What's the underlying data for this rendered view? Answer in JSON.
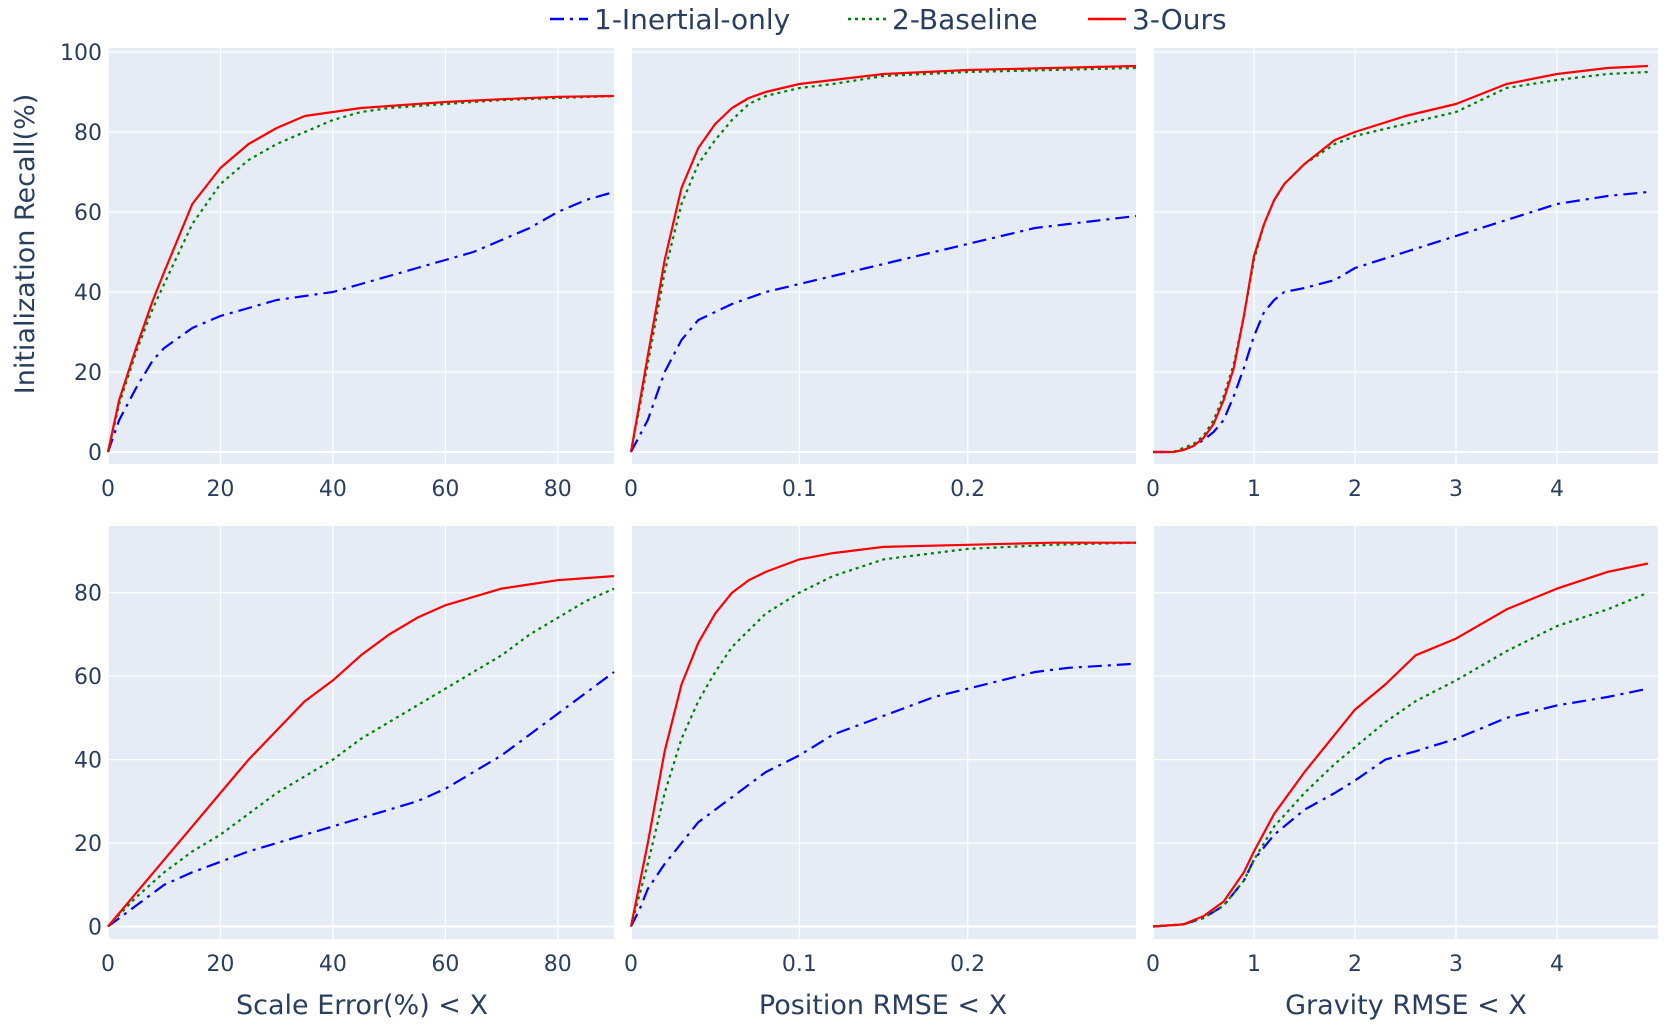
{
  "figure": {
    "legend": [
      {
        "key": "inertial",
        "label": "1-Inertial-only",
        "color": "#0000ff",
        "dash": "dashdot"
      },
      {
        "key": "baseline",
        "label": "2-Baseline",
        "color": "#008000",
        "dash": "dot"
      },
      {
        "key": "ours",
        "label": "3-Ours",
        "color": "#ff0000",
        "dash": "solid"
      }
    ],
    "ylabel": "Initialization Recall(%)",
    "xlabels": [
      "Scale Error(%) < X",
      "Position RMSE < X",
      "Gravity RMSE < X"
    ],
    "plot_bg": "#e5ecf6",
    "grid_color": "#ffffff"
  },
  "chart_data": [
    {
      "id": "top-scale",
      "type": "line",
      "row": 0,
      "col": 0,
      "xlim": [
        0,
        90
      ],
      "ylim": [
        -3,
        101
      ],
      "xticks": [
        0,
        20,
        40,
        60,
        80
      ],
      "xtick_labels": [
        "0",
        "20",
        "40",
        "60",
        "80"
      ],
      "yticks": [
        0,
        20,
        40,
        60,
        80,
        100
      ],
      "ytick_labels": [
        "0",
        "20",
        "40",
        "60",
        "80",
        "100"
      ],
      "series": [
        {
          "name": "1-Inertial-only",
          "x": [
            0,
            2,
            5,
            8,
            10,
            15,
            20,
            25,
            30,
            35,
            40,
            45,
            50,
            55,
            60,
            65,
            70,
            75,
            80,
            85,
            90
          ],
          "y": [
            0,
            8,
            16,
            23,
            26,
            31,
            34,
            36,
            38,
            39,
            40,
            42,
            44,
            46,
            48,
            50,
            53,
            56,
            60,
            63,
            65
          ]
        },
        {
          "name": "2-Baseline",
          "x": [
            0,
            2,
            5,
            8,
            10,
            15,
            20,
            25,
            30,
            35,
            40,
            45,
            50,
            55,
            60,
            70,
            80,
            90
          ],
          "y": [
            0,
            12,
            25,
            36,
            42,
            57,
            67,
            73,
            77,
            80,
            83,
            85,
            86,
            86.5,
            87,
            88,
            88.5,
            89
          ]
        },
        {
          "name": "3-Ours",
          "x": [
            0,
            2,
            5,
            8,
            10,
            15,
            20,
            25,
            30,
            35,
            40,
            45,
            50,
            55,
            60,
            70,
            80,
            90
          ],
          "y": [
            0,
            13,
            26,
            38,
            45,
            62,
            71,
            77,
            81,
            84,
            85,
            86,
            86.5,
            87,
            87.5,
            88.2,
            88.8,
            89
          ]
        }
      ]
    },
    {
      "id": "top-position",
      "type": "line",
      "row": 0,
      "col": 1,
      "xlim": [
        0,
        0.3
      ],
      "ylim": [
        -3,
        101
      ],
      "xticks": [
        0,
        0.1,
        0.2
      ],
      "xtick_labels": [
        "0",
        "0.1",
        "0.2"
      ],
      "yticks": [
        0,
        20,
        40,
        60,
        80,
        100
      ],
      "ytick_labels": [],
      "series": [
        {
          "name": "1-Inertial-only",
          "x": [
            0,
            0.01,
            0.02,
            0.03,
            0.04,
            0.05,
            0.06,
            0.08,
            0.1,
            0.12,
            0.14,
            0.16,
            0.18,
            0.2,
            0.22,
            0.24,
            0.26,
            0.28,
            0.3
          ],
          "y": [
            0,
            8,
            20,
            28,
            33,
            35,
            37,
            40,
            42,
            44,
            46,
            48,
            50,
            52,
            54,
            56,
            57,
            58,
            59
          ]
        },
        {
          "name": "2-Baseline",
          "x": [
            0,
            0.01,
            0.02,
            0.03,
            0.04,
            0.05,
            0.06,
            0.07,
            0.08,
            0.1,
            0.12,
            0.15,
            0.2,
            0.25,
            0.3
          ],
          "y": [
            0,
            22,
            45,
            62,
            72,
            78,
            83,
            87,
            89,
            91,
            92,
            94,
            95,
            95.5,
            96
          ]
        },
        {
          "name": "3-Ours",
          "x": [
            0,
            0.01,
            0.02,
            0.03,
            0.04,
            0.05,
            0.06,
            0.07,
            0.08,
            0.1,
            0.12,
            0.15,
            0.2,
            0.25,
            0.3
          ],
          "y": [
            0,
            24,
            48,
            66,
            76,
            82,
            86,
            88.5,
            90,
            92,
            93,
            94.5,
            95.5,
            96,
            96.5
          ]
        }
      ]
    },
    {
      "id": "top-gravity",
      "type": "line",
      "row": 0,
      "col": 2,
      "xlim": [
        0,
        5
      ],
      "ylim": [
        -3,
        101
      ],
      "xticks": [
        0,
        1,
        2,
        3,
        4
      ],
      "xtick_labels": [
        "0",
        "1",
        "2",
        "3",
        "4"
      ],
      "yticks": [
        0,
        20,
        40,
        60,
        80,
        100
      ],
      "ytick_labels": [],
      "series": [
        {
          "name": "1-Inertial-only",
          "x": [
            0,
            0.2,
            0.3,
            0.4,
            0.5,
            0.6,
            0.7,
            0.8,
            0.9,
            1.0,
            1.1,
            1.2,
            1.3,
            1.5,
            1.8,
            2.0,
            2.5,
            3.0,
            3.5,
            4.0,
            4.5,
            4.9
          ],
          "y": [
            0,
            0,
            0.5,
            1.5,
            3,
            5,
            8,
            14,
            21,
            29,
            35,
            38,
            40,
            41,
            43,
            46,
            50,
            54,
            58,
            62,
            64,
            65
          ]
        },
        {
          "name": "2-Baseline",
          "x": [
            0,
            0.2,
            0.3,
            0.4,
            0.5,
            0.6,
            0.7,
            0.8,
            0.9,
            1.0,
            1.1,
            1.2,
            1.3,
            1.5,
            1.8,
            2.0,
            2.5,
            3.0,
            3.5,
            4.0,
            4.5,
            4.9
          ],
          "y": [
            0,
            0,
            1,
            2,
            4,
            8,
            14,
            22,
            34,
            48,
            57,
            63,
            67,
            72,
            77,
            79,
            82,
            85,
            91,
            93,
            94.5,
            95
          ]
        },
        {
          "name": "3-Ours",
          "x": [
            0,
            0.2,
            0.3,
            0.4,
            0.5,
            0.6,
            0.7,
            0.8,
            0.9,
            1.0,
            1.1,
            1.2,
            1.3,
            1.5,
            1.8,
            2.0,
            2.5,
            3.0,
            3.5,
            4.0,
            4.5,
            4.9
          ],
          "y": [
            0,
            0,
            0.5,
            1.5,
            3.5,
            7,
            13,
            21,
            34,
            49,
            57,
            63,
            67,
            72,
            78,
            80,
            84,
            87,
            92,
            94.5,
            96,
            96.5
          ]
        }
      ]
    },
    {
      "id": "bottom-scale",
      "type": "line",
      "row": 1,
      "col": 0,
      "xlim": [
        0,
        90
      ],
      "ylim": [
        -3,
        96
      ],
      "xticks": [
        0,
        20,
        40,
        60,
        80
      ],
      "xtick_labels": [
        "0",
        "20",
        "40",
        "60",
        "80"
      ],
      "yticks": [
        0,
        20,
        40,
        60,
        80
      ],
      "ytick_labels": [
        "0",
        "20",
        "40",
        "60",
        "80"
      ],
      "series": [
        {
          "name": "1-Inertial-only",
          "x": [
            0,
            5,
            10,
            15,
            20,
            25,
            30,
            35,
            40,
            45,
            50,
            55,
            60,
            65,
            70,
            75,
            80,
            85,
            90
          ],
          "y": [
            0,
            5,
            10,
            13,
            15.5,
            18,
            20,
            22,
            24,
            26,
            28,
            30,
            33,
            37,
            41,
            46,
            51,
            56,
            61
          ]
        },
        {
          "name": "2-Baseline",
          "x": [
            0,
            5,
            10,
            15,
            20,
            25,
            30,
            35,
            40,
            45,
            50,
            55,
            60,
            65,
            70,
            75,
            80,
            85,
            90
          ],
          "y": [
            0,
            7,
            13,
            18,
            22,
            27,
            32,
            36,
            40,
            45,
            49,
            53,
            57,
            61,
            65,
            70,
            74,
            78,
            81
          ]
        },
        {
          "name": "3-Ours",
          "x": [
            0,
            5,
            10,
            15,
            20,
            25,
            30,
            35,
            40,
            45,
            50,
            55,
            60,
            65,
            70,
            75,
            80,
            85,
            90
          ],
          "y": [
            0,
            8,
            16,
            24,
            32,
            40,
            47,
            54,
            59,
            65,
            70,
            74,
            77,
            79,
            81,
            82,
            83,
            83.5,
            84
          ]
        }
      ]
    },
    {
      "id": "bottom-position",
      "type": "line",
      "row": 1,
      "col": 1,
      "xlim": [
        0,
        0.3
      ],
      "ylim": [
        -3,
        96
      ],
      "xticks": [
        0,
        0.1,
        0.2
      ],
      "xtick_labels": [
        "0",
        "0.1",
        "0.2"
      ],
      "yticks": [
        0,
        20,
        40,
        60,
        80
      ],
      "ytick_labels": [],
      "series": [
        {
          "name": "1-Inertial-only",
          "x": [
            0,
            0.005,
            0.01,
            0.02,
            0.03,
            0.04,
            0.05,
            0.06,
            0.08,
            0.1,
            0.12,
            0.14,
            0.16,
            0.18,
            0.2,
            0.22,
            0.24,
            0.26,
            0.28,
            0.3
          ],
          "y": [
            0,
            4,
            9,
            15,
            20,
            25,
            28,
            31,
            37,
            41,
            46,
            49,
            52,
            55,
            57,
            59,
            61,
            62,
            62.5,
            63
          ]
        },
        {
          "name": "2-Baseline",
          "x": [
            0,
            0.01,
            0.02,
            0.03,
            0.04,
            0.05,
            0.06,
            0.07,
            0.08,
            0.1,
            0.12,
            0.15,
            0.2,
            0.25,
            0.3
          ],
          "y": [
            0,
            15,
            32,
            45,
            54,
            61,
            67,
            71,
            75,
            80,
            84,
            88,
            90.5,
            91.5,
            92
          ]
        },
        {
          "name": "3-Ours",
          "x": [
            0,
            0.01,
            0.02,
            0.03,
            0.04,
            0.05,
            0.06,
            0.07,
            0.08,
            0.1,
            0.12,
            0.15,
            0.2,
            0.25,
            0.3
          ],
          "y": [
            0,
            20,
            42,
            58,
            68,
            75,
            80,
            83,
            85,
            88,
            89.5,
            91,
            91.5,
            92,
            92
          ]
        }
      ]
    },
    {
      "id": "bottom-gravity",
      "type": "line",
      "row": 1,
      "col": 2,
      "xlim": [
        0,
        5
      ],
      "ylim": [
        -3,
        96
      ],
      "xticks": [
        0,
        1,
        2,
        3,
        4
      ],
      "xtick_labels": [
        "0",
        "1",
        "2",
        "3",
        "4"
      ],
      "yticks": [
        0,
        20,
        40,
        60,
        80
      ],
      "ytick_labels": [],
      "series": [
        {
          "name": "1-Inertial-only",
          "x": [
            0,
            0.3,
            0.5,
            0.7,
            0.9,
            1.0,
            1.2,
            1.5,
            1.8,
            2.0,
            2.3,
            2.6,
            3.0,
            3.5,
            4.0,
            4.5,
            4.9
          ],
          "y": [
            0,
            0.5,
            2,
            5,
            11,
            16,
            22,
            28,
            32,
            35,
            40,
            42,
            45,
            50,
            53,
            55,
            57
          ]
        },
        {
          "name": "2-Baseline",
          "x": [
            0,
            0.3,
            0.5,
            0.7,
            0.9,
            1.0,
            1.2,
            1.5,
            1.8,
            2.0,
            2.3,
            2.6,
            3.0,
            3.5,
            4.0,
            4.5,
            4.9
          ],
          "y": [
            0,
            0.5,
            2,
            5,
            11,
            16,
            24,
            32,
            39,
            43,
            49,
            54,
            59,
            66,
            72,
            76,
            80
          ]
        },
        {
          "name": "3-Ours",
          "x": [
            0,
            0.3,
            0.5,
            0.7,
            0.9,
            1.0,
            1.2,
            1.5,
            1.8,
            2.0,
            2.3,
            2.6,
            3.0,
            3.5,
            4.0,
            4.5,
            4.9
          ],
          "y": [
            0,
            0.5,
            2.5,
            6,
            13,
            18,
            27,
            37,
            46,
            52,
            58,
            65,
            69,
            76,
            81,
            85,
            87
          ]
        }
      ]
    }
  ]
}
